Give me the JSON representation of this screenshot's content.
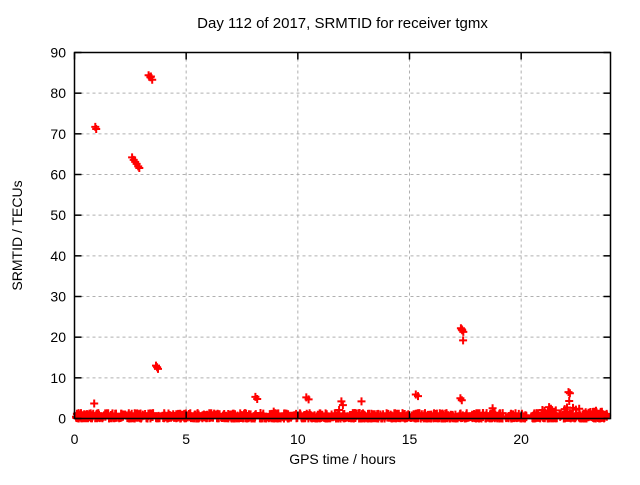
{
  "chart_data": {
    "type": "scatter",
    "title": "Day 112 of 2017, SRMTID for receiver tgmx",
    "xlabel": "GPS time / hours",
    "ylabel": "SRMTID / TECUs",
    "xlim": [
      0,
      24
    ],
    "ylim": [
      0,
      90
    ],
    "xticks": [
      0,
      5,
      10,
      15,
      20
    ],
    "yticks": [
      0,
      10,
      20,
      30,
      40,
      50,
      60,
      70,
      80,
      90
    ],
    "grid": true,
    "legend": "none",
    "marker": "plus",
    "colors": {
      "points": "#ff0000",
      "grid": "#b0b0b0",
      "border": "#000000",
      "text": "#000000",
      "background": "#ffffff"
    },
    "outliers": [
      [
        0.88,
        3.7
      ],
      [
        0.93,
        71.7
      ],
      [
        0.97,
        71.2
      ],
      [
        2.58,
        64.2
      ],
      [
        2.65,
        63.6
      ],
      [
        2.72,
        63.1
      ],
      [
        2.78,
        62.6
      ],
      [
        2.85,
        62.0
      ],
      [
        2.9,
        61.6
      ],
      [
        3.32,
        84.4
      ],
      [
        3.42,
        84.1
      ],
      [
        3.4,
        83.9
      ],
      [
        3.48,
        83.3
      ],
      [
        3.65,
        13.0
      ],
      [
        3.7,
        12.6
      ],
      [
        3.74,
        12.2
      ],
      [
        8.1,
        5.3
      ],
      [
        8.18,
        4.8
      ],
      [
        8.92,
        1.7
      ],
      [
        10.38,
        5.2
      ],
      [
        10.48,
        4.7
      ],
      [
        11.85,
        2.1
      ],
      [
        11.95,
        4.2
      ],
      [
        12.02,
        3.3
      ],
      [
        12.85,
        4.2
      ],
      [
        15.28,
        5.9
      ],
      [
        15.38,
        5.5
      ],
      [
        17.3,
        22.2
      ],
      [
        17.34,
        21.9
      ],
      [
        17.36,
        21.7
      ],
      [
        17.41,
        21.3
      ],
      [
        17.4,
        19.2
      ],
      [
        17.28,
        5.0
      ],
      [
        17.34,
        4.5
      ],
      [
        18.72,
        2.5
      ],
      [
        20.95,
        2.1
      ],
      [
        21.05,
        1.9
      ],
      [
        21.25,
        2.8
      ],
      [
        21.33,
        2.4
      ],
      [
        21.55,
        2.0
      ],
      [
        21.95,
        2.3
      ],
      [
        22.05,
        2.7
      ],
      [
        22.12,
        6.5
      ],
      [
        22.18,
        6.2
      ],
      [
        22.15,
        4.3
      ],
      [
        22.32,
        2.6
      ],
      [
        22.45,
        2.2
      ],
      [
        22.6,
        2.4
      ],
      [
        23.1,
        1.6
      ],
      [
        23.35,
        1.9
      ],
      [
        23.55,
        1.3
      ]
    ],
    "baseline_band": {
      "description": "dense band of near-zero SRMTID values across the whole day",
      "seed": 20170422,
      "segments": [
        {
          "x0": 0.03,
          "x1": 22.85,
          "count": 1250,
          "y_max": 1.35
        },
        {
          "x0": 22.85,
          "x1": 23.85,
          "count": 80,
          "y_max": 1.8
        }
      ],
      "gaps": [
        [
          3.55,
          3.64
        ],
        [
          3.83,
          3.9
        ],
        [
          8.12,
          8.3
        ],
        [
          9.98,
          10.08
        ],
        [
          20.3,
          20.5
        ],
        [
          21.6,
          21.7
        ]
      ]
    }
  }
}
